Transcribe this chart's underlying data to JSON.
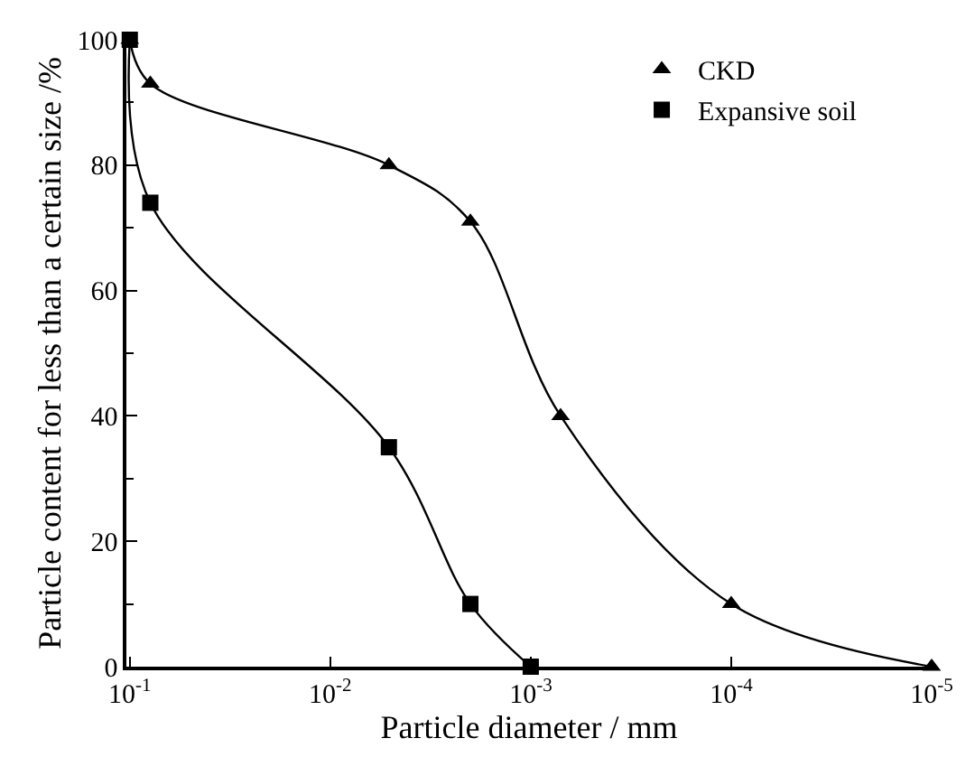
{
  "chart_data": {
    "type": "line",
    "xlabel": "Particle diameter / mm",
    "ylabel": "Particle content for less than a certain size /%",
    "log": "x",
    "xlim": [
      0.104,
      1e-05
    ],
    "xticks": [
      {
        "value": 0.1,
        "label": "10$^{-1}$"
      },
      {
        "value": 0.01,
        "label": "10$^{-2}$"
      },
      {
        "value": 0.001,
        "label": "10$^{-3}$"
      },
      {
        "value": 0.0001,
        "label": "10$^{-4}$"
      },
      {
        "value": 1e-05,
        "label": "10$^{-5}$"
      }
    ],
    "ylim": [
      0,
      100
    ],
    "yticks": [
      0,
      20,
      40,
      60,
      80,
      100
    ],
    "legend": "top right",
    "series": [
      {
        "name": "CKD",
        "color": "#000000",
        "marker": "triangle",
        "x": [
          0.1,
          0.079,
          0.0051,
          0.002,
          0.00071,
          0.0001,
          1e-05
        ],
        "values": [
          100,
          93,
          80,
          71,
          40,
          10,
          0
        ]
      },
      {
        "name": "Expansive soil",
        "color": "#000000",
        "marker": "square",
        "x": [
          0.1,
          0.079,
          0.0051,
          0.002,
          0.001
        ],
        "values": [
          100,
          74,
          35,
          10,
          0
        ]
      }
    ]
  }
}
